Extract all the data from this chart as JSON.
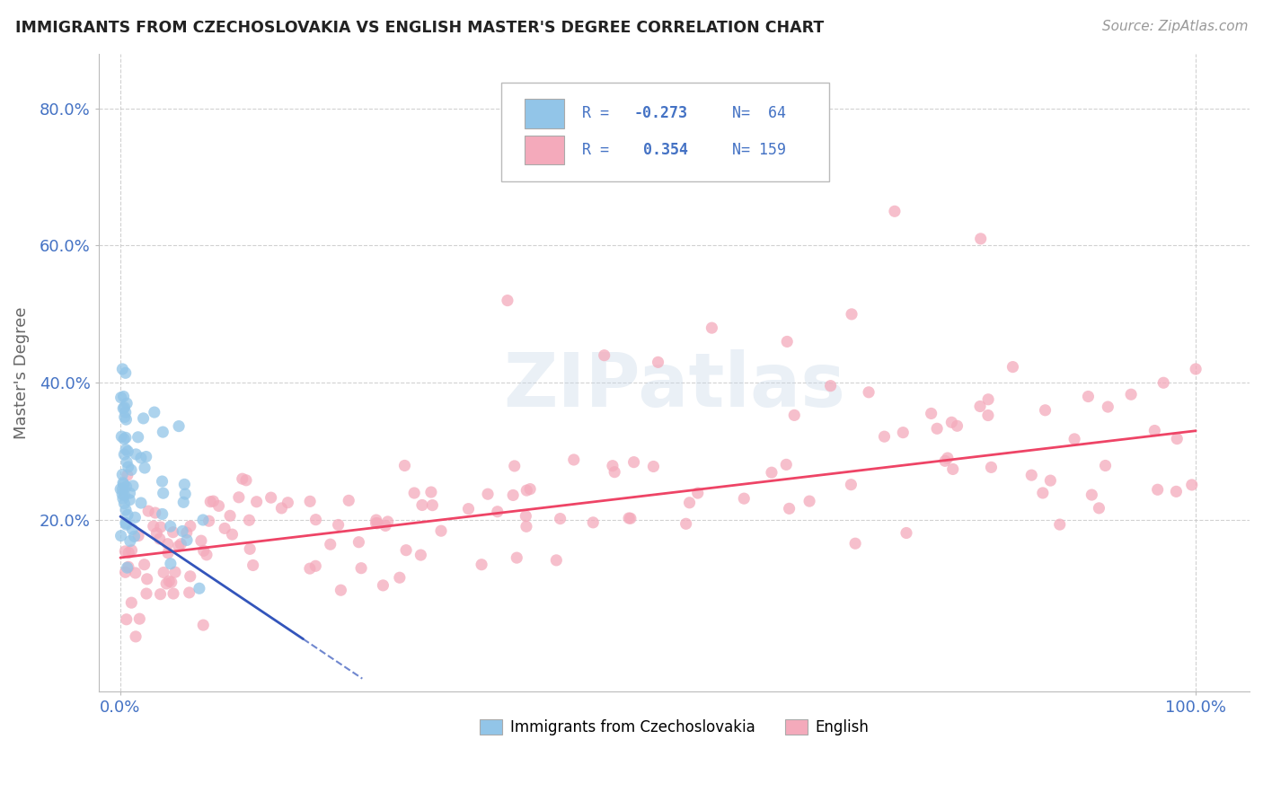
{
  "title": "IMMIGRANTS FROM CZECHOSLOVAKIA VS ENGLISH MASTER'S DEGREE CORRELATION CHART",
  "source": "Source: ZipAtlas.com",
  "ylabel": "Master's Degree",
  "blue_color": "#92C5E8",
  "pink_color": "#F4AABB",
  "blue_line_color": "#3355BB",
  "pink_line_color": "#EE4466",
  "background_color": "#FFFFFF",
  "grid_color": "#CCCCCC",
  "figsize": [
    14.06,
    8.92
  ],
  "dpi": 100,
  "xlim": [
    -0.02,
    1.05
  ],
  "ylim": [
    -0.05,
    0.88
  ],
  "xticks": [
    0.0,
    1.0
  ],
  "yticks": [
    0.2,
    0.4,
    0.6,
    0.8
  ],
  "xtick_labels": [
    "0.0%",
    "100.0%"
  ],
  "ytick_labels": [
    "20.0%",
    "40.0%",
    "60.0%",
    "80.0%"
  ],
  "legend_text_color": "#4472C4",
  "legend_R1": "R = -0.273",
  "legend_N1": "N=  64",
  "legend_R2": "R =  0.354",
  "legend_N2": "N= 159"
}
